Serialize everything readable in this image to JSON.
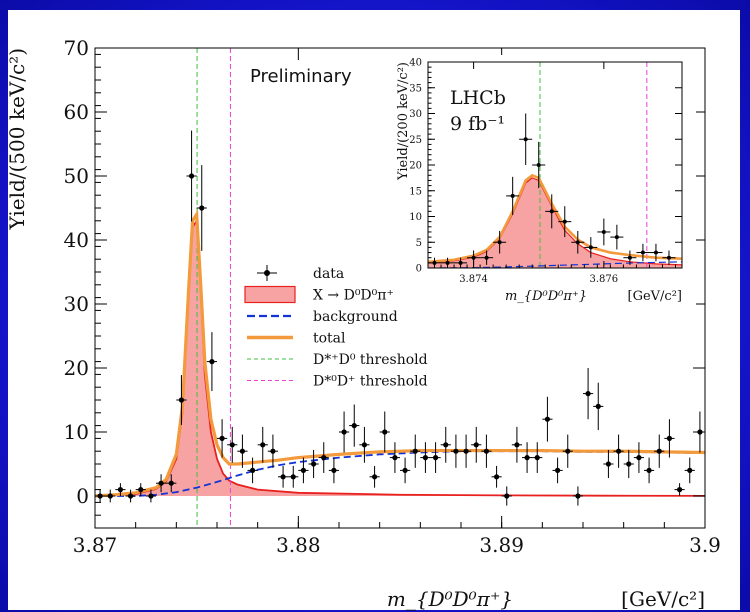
{
  "annotation": "Preliminary",
  "colors": {
    "signal_fill": "#f7a3a3",
    "signal_line": "#e8201e",
    "background": "#1233d6",
    "total": "#f39a3c",
    "thr1": "#3fbf3f",
    "thr2": "#e83fd6",
    "page_bg": "#1a1ad6"
  },
  "chart_data": [
    {
      "type": "scatter",
      "ylabel": "Yield/(500 keV/c²)",
      "xlabel": "m_{D⁰D⁰π⁺}",
      "xunit": "[GeV/c²]",
      "xlim": [
        3.87,
        3.9
      ],
      "ylim": [
        -5,
        70
      ],
      "xticks": [
        "3.87",
        "3.88",
        "3.89",
        "3.9"
      ],
      "yticks": [
        "0",
        "10",
        "20",
        "30",
        "40",
        "50",
        "60",
        "70"
      ],
      "legend_position": "center",
      "legend": [
        {
          "label": "data",
          "kind": "data"
        },
        {
          "label": "X → D⁰D⁰π⁺",
          "kind": "signal"
        },
        {
          "label": "background",
          "kind": "background"
        },
        {
          "label": "total",
          "kind": "total"
        },
        {
          "label": "D*⁺D⁰ threshold",
          "kind": "thr1"
        },
        {
          "label": "D*⁰D⁺ threshold",
          "kind": "thr2"
        }
      ],
      "thresholds": [
        3.87502,
        3.87666
      ],
      "series": [
        {
          "name": "data",
          "kind": "points",
          "x": [
            3.87025,
            3.87075,
            3.87125,
            3.87175,
            3.87225,
            3.87275,
            3.87325,
            3.87375,
            3.87425,
            3.87475,
            3.87525,
            3.87575,
            3.87625,
            3.87675,
            3.87725,
            3.87775,
            3.87825,
            3.87875,
            3.87925,
            3.87975,
            3.88025,
            3.88075,
            3.88125,
            3.88175,
            3.88225,
            3.88275,
            3.88325,
            3.88375,
            3.88425,
            3.88475,
            3.88525,
            3.88575,
            3.88625,
            3.88675,
            3.88725,
            3.88775,
            3.88825,
            3.88875,
            3.88925,
            3.88975,
            3.89025,
            3.89075,
            3.89125,
            3.89175,
            3.89225,
            3.89275,
            3.89325,
            3.89375,
            3.89425,
            3.89475,
            3.89525,
            3.89575,
            3.89625,
            3.89675,
            3.89725,
            3.89775,
            3.89825,
            3.89875,
            3.89925,
            3.89975
          ],
          "y": [
            0,
            0,
            1,
            0,
            1,
            0,
            2,
            2,
            15,
            50,
            45,
            21,
            9,
            8,
            7,
            4,
            8,
            7,
            3,
            3,
            4,
            5,
            6,
            4,
            10,
            11,
            8,
            3,
            10,
            6,
            4,
            7,
            6,
            6,
            8,
            7,
            7,
            8,
            7,
            3,
            0,
            8,
            6,
            6,
            12,
            4,
            7,
            0,
            16,
            14,
            5,
            7,
            5,
            6,
            4,
            7,
            9,
            1,
            4,
            10
          ],
          "err": [
            1,
            1,
            1,
            1,
            1,
            1,
            1.4,
            1.4,
            3.9,
            7.1,
            6.7,
            4.6,
            3,
            2.8,
            2.6,
            2,
            2.8,
            2.6,
            1.7,
            1.7,
            2,
            2.2,
            2.4,
            2,
            3.2,
            3.3,
            2.8,
            1.7,
            3.2,
            2.4,
            2,
            2.6,
            2.4,
            2.4,
            2.8,
            2.6,
            2.6,
            2.8,
            2.6,
            1.7,
            1.5,
            2.8,
            2.4,
            2.4,
            3.5,
            2,
            2.6,
            1.5,
            4,
            3.7,
            2.2,
            2.6,
            2.2,
            2.4,
            2,
            2.6,
            3,
            1,
            2,
            3.2
          ]
        },
        {
          "name": "total",
          "kind": "curve",
          "x": [
            3.87,
            3.871,
            3.872,
            3.873,
            3.8735,
            3.874,
            3.8743,
            3.8746,
            3.8748,
            3.875,
            3.8752,
            3.8754,
            3.8757,
            3.876,
            3.8763,
            3.8766,
            3.877,
            3.878,
            3.879,
            3.88,
            3.882,
            3.884,
            3.886,
            3.888,
            3.89,
            3.892,
            3.894,
            3.896,
            3.898,
            3.9
          ],
          "y": [
            0,
            0.2,
            0.5,
            1.3,
            2.6,
            6.5,
            14,
            32,
            43,
            44,
            33,
            21,
            12,
            8,
            6,
            5,
            5,
            5.3,
            5.6,
            6,
            6.5,
            6.9,
            7.1,
            7.1,
            7.1,
            7.1,
            7.0,
            7.0,
            6.9,
            6.8
          ]
        },
        {
          "name": "background",
          "kind": "curve",
          "x": [
            3.87,
            3.872,
            3.873,
            3.874,
            3.875,
            3.876,
            3.877,
            3.878,
            3.879,
            3.88,
            3.882,
            3.884,
            3.886,
            3.888,
            3.89,
            3.892,
            3.894,
            3.896,
            3.898,
            3.9
          ],
          "y": [
            0,
            0,
            0.2,
            0.6,
            1.3,
            2.2,
            3.2,
            4.1,
            4.8,
            5.3,
            6,
            6.5,
            6.8,
            7,
            7,
            7,
            6.9,
            6.9,
            6.8,
            6.7
          ]
        },
        {
          "name": "X → D⁰D⁰π⁺",
          "kind": "curve",
          "x": [
            3.87,
            3.872,
            3.873,
            3.8735,
            3.874,
            3.8743,
            3.8746,
            3.8748,
            3.875,
            3.8752,
            3.8754,
            3.8757,
            3.876,
            3.8763,
            3.8766,
            3.877,
            3.878,
            3.88,
            3.885,
            3.89,
            3.895,
            3.9
          ],
          "y": [
            0,
            0.3,
            1.1,
            2.3,
            5.8,
            13,
            31,
            42,
            43,
            32,
            19,
            10,
            5.8,
            3.5,
            2.4,
            1.8,
            1.0,
            0.5,
            0.2,
            0.1,
            0.05,
            0.02
          ]
        }
      ]
    },
    {
      "type": "scatter",
      "text_lines": [
        "LHCb",
        "9 fb⁻¹"
      ],
      "ylabel": "Yield/(200 keV/c²)",
      "xlabel": "m_{D⁰D⁰π⁺}",
      "xunit": "[GeV/c²]",
      "xlim": [
        3.8733,
        3.8772
      ],
      "ylim": [
        0,
        40
      ],
      "xticks": [
        "3.874",
        "3.876"
      ],
      "yticks": [
        "0",
        "5",
        "10",
        "15",
        "20",
        "25",
        "30",
        "35",
        "40"
      ],
      "thresholds": [
        3.87502,
        3.87666
      ],
      "series": [
        {
          "name": "data",
          "kind": "points",
          "x": [
            3.8734,
            3.8736,
            3.8738,
            3.874,
            3.8742,
            3.8744,
            3.8746,
            3.8748,
            3.875,
            3.8752,
            3.8754,
            3.8756,
            3.8758,
            3.876,
            3.8762,
            3.8764,
            3.8766,
            3.8768,
            3.877
          ],
          "y": [
            1,
            1,
            1,
            2,
            2,
            5,
            14,
            25,
            20,
            11,
            9,
            5,
            4,
            7,
            6,
            2,
            3,
            3,
            2
          ],
          "err": [
            1,
            1,
            1,
            1.4,
            1.4,
            2.2,
            3.7,
            5,
            4.5,
            3.3,
            3,
            2.2,
            2,
            2.6,
            2.4,
            1.4,
            1.7,
            1.7,
            1.4
          ]
        },
        {
          "name": "total",
          "kind": "curve",
          "x": [
            3.8733,
            3.8737,
            3.874,
            3.8742,
            3.8744,
            3.8746,
            3.8747,
            3.8748,
            3.8749,
            3.875,
            3.8751,
            3.8752,
            3.8754,
            3.8756,
            3.8758,
            3.8761,
            3.8764,
            3.8768,
            3.8772
          ],
          "y": [
            1.2,
            1.6,
            2.4,
            3.5,
            6,
            11,
            14,
            17,
            18,
            17.5,
            15,
            12.5,
            8,
            5.5,
            4,
            3,
            2.5,
            2,
            1.8
          ]
        },
        {
          "name": "X → D⁰D⁰π⁺",
          "kind": "curve",
          "x": [
            3.8733,
            3.8737,
            3.874,
            3.8742,
            3.8744,
            3.8746,
            3.8747,
            3.8748,
            3.8749,
            3.875,
            3.8751,
            3.8752,
            3.8754,
            3.8756,
            3.8758,
            3.8761,
            3.8764,
            3.8768,
            3.8772
          ],
          "y": [
            1.0,
            1.4,
            2.1,
            3.2,
            5.7,
            10.5,
            13.5,
            16.5,
            17.5,
            17,
            14.5,
            12,
            7.3,
            4.7,
            3,
            1.8,
            1.2,
            0.8,
            0.6
          ]
        },
        {
          "name": "background",
          "kind": "curve",
          "x": [
            3.8733,
            3.874,
            3.8745,
            3.875,
            3.8755,
            3.876,
            3.8765,
            3.8772
          ],
          "y": [
            0,
            0.05,
            0.2,
            0.4,
            0.6,
            0.8,
            1.0,
            1.2
          ]
        }
      ]
    }
  ]
}
